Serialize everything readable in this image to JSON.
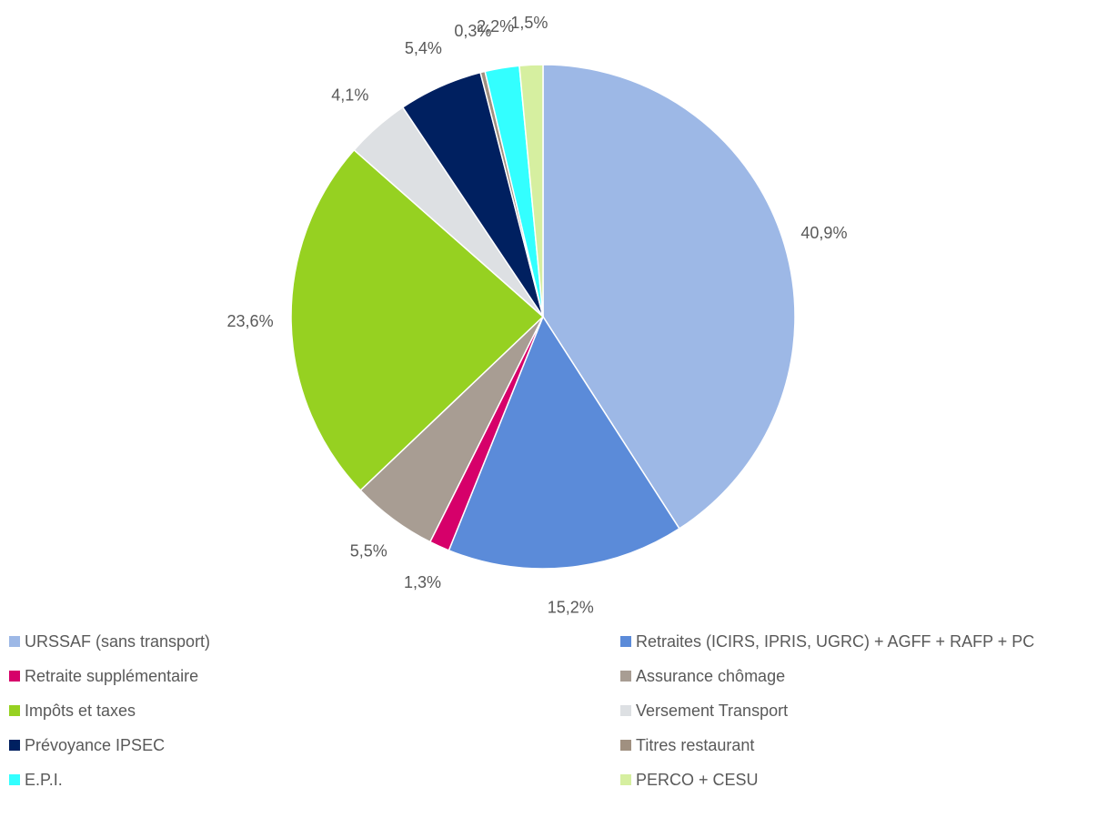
{
  "chart_data": {
    "type": "pie",
    "categories": [
      "URSSAF (sans transport)",
      "Retraites (ICIRS, IPRIS, UGRC) + AGFF + RAFP + PC",
      "Retraite supplémentaire",
      "Assurance chômage",
      "Impôts et taxes",
      "Versement Transport",
      "Prévoyance IPSEC",
      "Titres restaurant",
      "E.P.I.",
      "PERCO + CESU"
    ],
    "values": [
      40.9,
      15.2,
      1.3,
      5.5,
      23.6,
      4.1,
      5.4,
      0.3,
      2.2,
      1.5
    ],
    "value_labels": [
      "40,9%",
      "15,2%",
      "1,3%",
      "5,5%",
      "23,6%",
      "4,1%",
      "5,4%",
      "0,3%",
      "2,2%",
      "1,5%"
    ],
    "colors": [
      "#9db8e6",
      "#5b8bd9",
      "#d6006a",
      "#a89d93",
      "#96d121",
      "#dde0e3",
      "#002060",
      "#a09080",
      "#33ffff",
      "#d6efa0"
    ],
    "legend": "bottom"
  }
}
